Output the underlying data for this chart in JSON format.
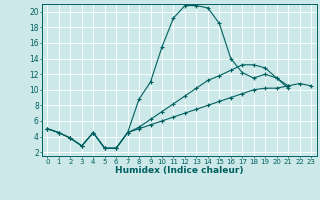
{
  "xlabel": "Humidex (Indice chaleur)",
  "bg_color": "#cce8e8",
  "line_color": "#006060",
  "grid_color": "#ffffff",
  "xlim": [
    -0.5,
    23.5
  ],
  "ylim": [
    1.5,
    21.0
  ],
  "xticks": [
    0,
    1,
    2,
    3,
    4,
    5,
    6,
    7,
    8,
    9,
    10,
    11,
    12,
    13,
    14,
    15,
    16,
    17,
    18,
    19,
    20,
    21,
    22,
    23
  ],
  "yticks": [
    2,
    4,
    6,
    8,
    10,
    12,
    14,
    16,
    18,
    20
  ],
  "line1_x": [
    0,
    1,
    2,
    3,
    4,
    5,
    6,
    7,
    8,
    9,
    10,
    11,
    12,
    13,
    14,
    15,
    16,
    17,
    18,
    19,
    20,
    21
  ],
  "line1_y": [
    5.0,
    4.5,
    3.8,
    2.8,
    4.5,
    2.5,
    2.5,
    4.5,
    8.8,
    11.0,
    15.5,
    19.2,
    20.8,
    20.8,
    20.5,
    18.5,
    14.0,
    12.2,
    11.5,
    12.0,
    11.5,
    10.5
  ],
  "line2_x": [
    0,
    1,
    2,
    3,
    4,
    5,
    6,
    7,
    8,
    9,
    10,
    11,
    12,
    13,
    14,
    15,
    16,
    17,
    18,
    19,
    20,
    21
  ],
  "line2_y": [
    5.0,
    4.5,
    3.8,
    2.8,
    4.5,
    2.5,
    2.5,
    4.5,
    5.2,
    6.2,
    7.2,
    8.2,
    9.2,
    10.2,
    11.2,
    11.8,
    12.5,
    13.2,
    13.2,
    12.8,
    11.5,
    10.2
  ],
  "line3_x": [
    0,
    1,
    2,
    3,
    4,
    5,
    6,
    7,
    8,
    9,
    10,
    11,
    12,
    13,
    14,
    15,
    16,
    17,
    18,
    19,
    20,
    21,
    22,
    23
  ],
  "line3_y": [
    5.0,
    4.5,
    3.8,
    2.8,
    4.5,
    2.5,
    2.5,
    4.5,
    5.0,
    5.5,
    6.0,
    6.5,
    7.0,
    7.5,
    8.0,
    8.5,
    9.0,
    9.5,
    10.0,
    10.2,
    10.2,
    10.5,
    10.8,
    10.5
  ]
}
